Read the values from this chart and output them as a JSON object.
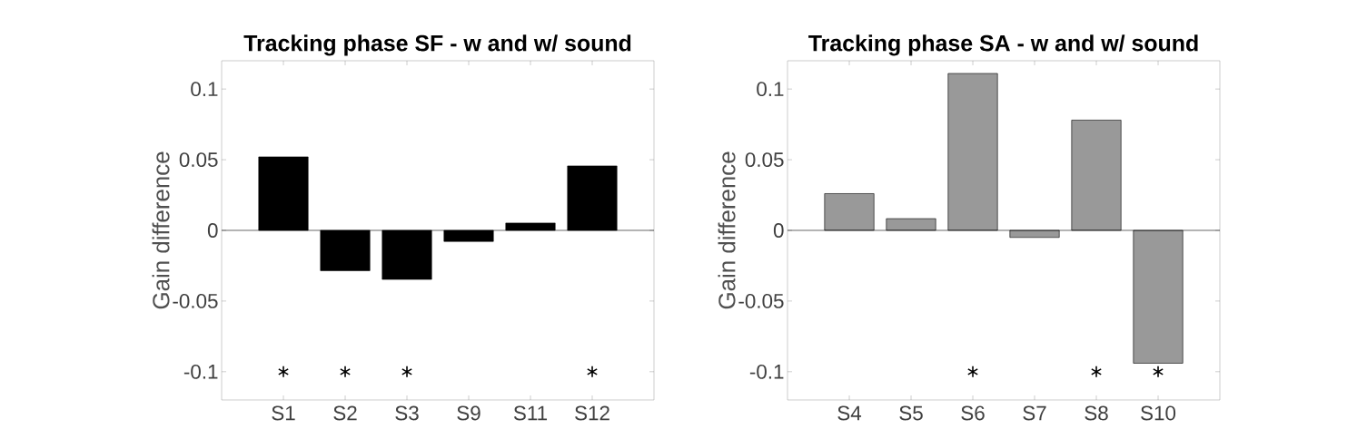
{
  "chart_data": [
    {
      "type": "bar",
      "title": "Tracking phase SF - w and w/ sound",
      "ylabel": "Gain difference",
      "categories": [
        "S1",
        "S2",
        "S3",
        "S9",
        "S11",
        "S12"
      ],
      "series": [
        {
          "color": "#000000",
          "values": [
            0.052,
            -0.0285,
            -0.0347,
            -0.0078,
            0.0052,
            0.0456
          ]
        },
        {
          "type": "scatter",
          "color": "#000000",
          "marker": "cross",
          "x": [
            "S1",
            "S2",
            "S3",
            "S12"
          ],
          "values": [
            -0.1,
            -0.1,
            -0.1,
            -0.1
          ]
        }
      ],
      "ylim": [
        -0.12,
        0.12
      ],
      "yticks": [
        -0.1,
        -0.05,
        0,
        0.05,
        0.1
      ],
      "grid": false,
      "ref_lines": [
        {
          "axis": "y",
          "value": 0,
          "color": "#000000"
        }
      ]
    },
    {
      "type": "bar",
      "title": "Tracking phase SA - w and w/ sound",
      "ylabel": "Gain difference",
      "categories": [
        "S4",
        "S5",
        "S6",
        "S7",
        "S8",
        "S10"
      ],
      "series": [
        {
          "color": "#999999",
          "values": [
            0.026,
            0.0083,
            0.111,
            -0.005,
            0.078,
            -0.094
          ]
        },
        {
          "type": "scatter",
          "color": "#000000",
          "marker": "cross",
          "x": [
            "S6",
            "S8",
            "S10"
          ],
          "values": [
            -0.1,
            -0.1,
            -0.1
          ]
        }
      ],
      "ylim": [
        -0.12,
        0.12
      ],
      "yticks": [
        -0.1,
        -0.05,
        0,
        0.05,
        0.1
      ],
      "grid": false,
      "ref_lines": [
        {
          "axis": "y",
          "value": 0,
          "color": "#000000"
        }
      ]
    }
  ]
}
